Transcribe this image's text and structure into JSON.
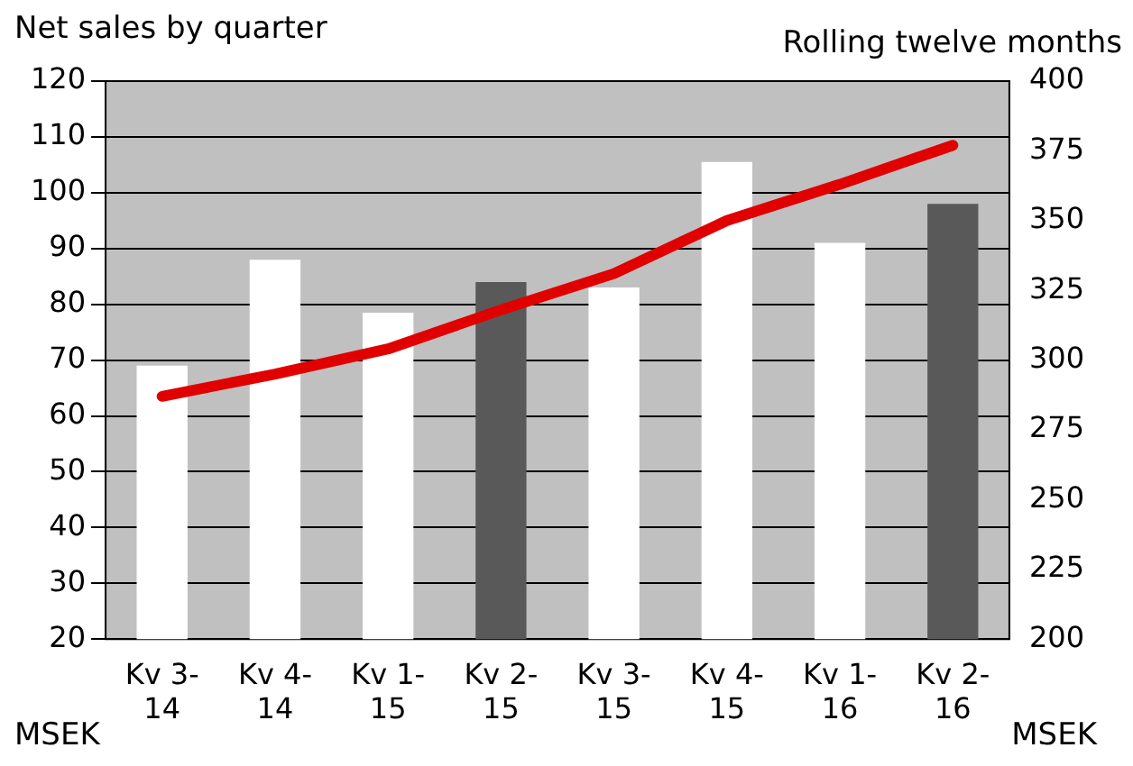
{
  "chart_data": {
    "type": "bar",
    "ylabel": "Net sales by quarter",
    "y2label": "Rolling twelve months",
    "annotations": [
      "MSEK",
      "MSEK"
    ],
    "categories": [
      "Kv 3-14",
      "Kv 4-14",
      "Kv 1-15",
      "Kv 2-15",
      "Kv 3-15",
      "Kv 4-15",
      "Kv 1-16",
      "Kv 2-16"
    ],
    "series": [
      {
        "colors": [
          "#ffffff",
          "#ffffff",
          "#ffffff",
          "#595959",
          "#ffffff",
          "#ffffff",
          "#ffffff",
          "#595959"
        ],
        "values": [
          69,
          88,
          78.5,
          84,
          83,
          105.5,
          91,
          98
        ]
      },
      {
        "type": "line",
        "axis": "y2",
        "color": "#e00000",
        "values": [
          287,
          295,
          304,
          318,
          331,
          350,
          363,
          377
        ]
      }
    ],
    "ylim": [
      20,
      120
    ],
    "yticks": [
      20,
      30,
      40,
      50,
      60,
      70,
      80,
      90,
      100,
      110,
      120
    ],
    "y2lim": [
      200,
      400
    ],
    "y2ticks": [
      200,
      225,
      250,
      275,
      300,
      325,
      350,
      375,
      400
    ],
    "grid": "y",
    "legend": false,
    "marker": "none"
  }
}
